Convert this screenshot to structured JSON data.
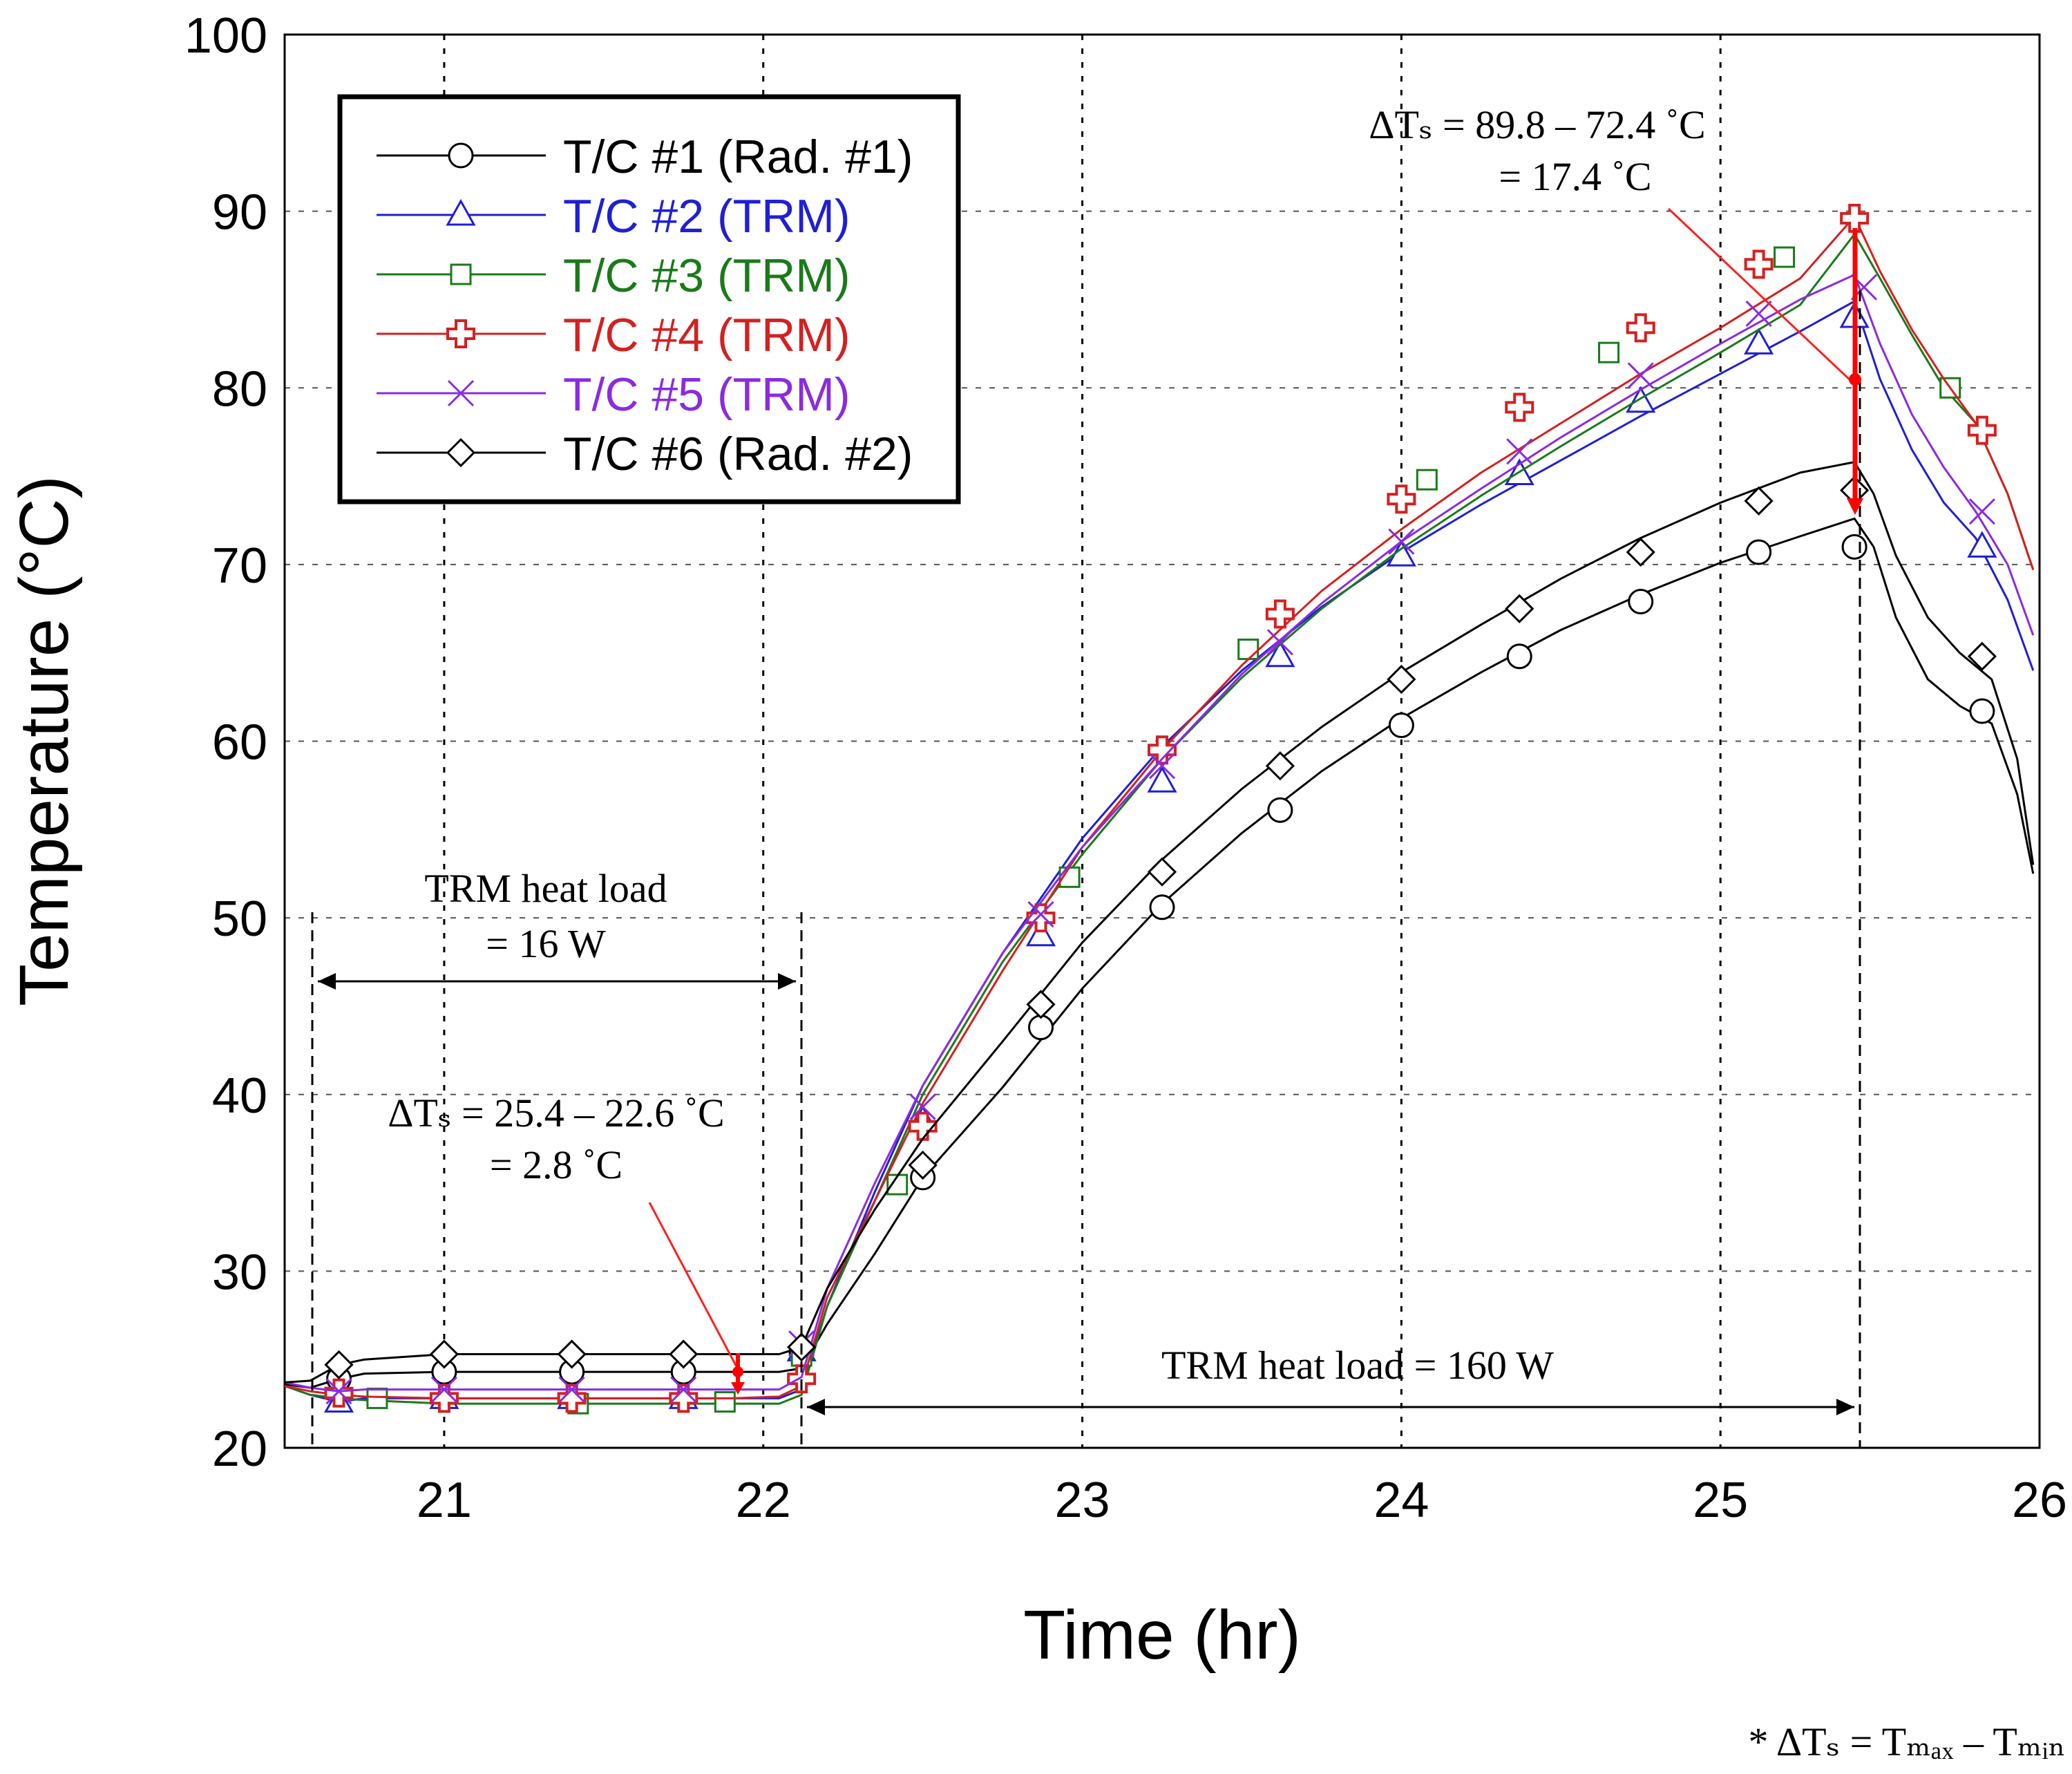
{
  "chart_data": {
    "type": "line",
    "title": "",
    "xlabel": "Time (hr)",
    "ylabel": "Temperature (°C)",
    "xlim": [
      20.5,
      26
    ],
    "ylim": [
      20,
      100
    ],
    "xticks": [
      21,
      22,
      23,
      24,
      25,
      26
    ],
    "yticks": [
      20,
      30,
      40,
      50,
      60,
      70,
      80,
      90,
      100
    ],
    "grid": true,
    "legend_position": "top-left",
    "series": [
      {
        "name": "T/C #1 (Rad. #1)",
        "color": "#000000",
        "marker": "circle",
        "x": [
          20.5,
          20.58,
          20.67,
          20.75,
          21.0,
          21.5,
          21.9,
          22.05,
          22.12,
          22.2,
          22.35,
          22.5,
          22.75,
          23.0,
          23.25,
          23.5,
          23.75,
          24.0,
          24.25,
          24.5,
          24.75,
          25.0,
          25.25,
          25.42,
          25.48,
          25.55,
          25.65,
          25.75,
          25.85,
          25.93,
          25.98
        ],
        "y": [
          23.6,
          23.4,
          23.9,
          24.2,
          24.3,
          24.3,
          24.3,
          24.3,
          24.5,
          27.0,
          31.0,
          35.3,
          40.4,
          46.0,
          50.8,
          54.8,
          58.3,
          61.3,
          63.9,
          66.3,
          68.3,
          70.1,
          71.6,
          72.6,
          71.0,
          67.0,
          63.5,
          62.0,
          61.0,
          57.0,
          52.5
        ],
        "marker_x": [
          20.67,
          21.0,
          21.4,
          21.75,
          22.12,
          22.5,
          22.87,
          23.25,
          23.62,
          24.0,
          24.37,
          24.75,
          25.12,
          25.42,
          25.82
        ],
        "marker_y": [
          23.9,
          24.3,
          24.3,
          24.3,
          25.4,
          35.3,
          43.8,
          50.6,
          56.1,
          60.9,
          64.8,
          67.9,
          70.7,
          71.0,
          61.7
        ]
      },
      {
        "name": "T/C #2 (TRM)",
        "color": "#1f1fd6",
        "marker": "triangle",
        "x": [
          20.5,
          20.58,
          20.67,
          20.75,
          21.0,
          21.5,
          21.9,
          22.05,
          22.12,
          22.2,
          22.35,
          22.5,
          22.75,
          23.0,
          23.25,
          23.5,
          23.75,
          24.0,
          24.25,
          24.5,
          24.75,
          25.0,
          25.25,
          25.42,
          25.5,
          25.6,
          25.7,
          25.8,
          25.9,
          25.98
        ],
        "y": [
          23.5,
          23.0,
          22.6,
          22.8,
          22.8,
          22.8,
          22.8,
          22.8,
          23.3,
          28.0,
          34.5,
          40.5,
          48.0,
          54.5,
          59.7,
          64.0,
          67.6,
          70.7,
          73.4,
          75.9,
          78.4,
          80.8,
          83.2,
          84.9,
          80.5,
          76.5,
          73.5,
          71.5,
          68.0,
          64.0
        ],
        "marker_x": [
          20.67,
          21.0,
          21.4,
          21.75,
          22.12,
          22.5,
          22.87,
          23.25,
          23.62,
          24.0,
          24.37,
          24.75,
          25.12,
          25.42,
          25.82
        ],
        "marker_y": [
          22.6,
          22.8,
          22.8,
          22.8,
          25.5,
          38.5,
          49.0,
          57.7,
          64.8,
          70.5,
          75.1,
          79.2,
          82.5,
          84.0,
          71.0
        ]
      },
      {
        "name": "T/C #3 (TRM)",
        "color": "#1a7a1a",
        "marker": "square",
        "x": [
          20.5,
          20.58,
          20.67,
          20.75,
          21.0,
          21.5,
          21.9,
          22.05,
          22.12,
          22.2,
          22.35,
          22.5,
          22.75,
          23.0,
          23.25,
          23.5,
          23.75,
          24.0,
          24.25,
          24.5,
          24.75,
          25.0,
          25.25,
          25.42,
          25.5,
          25.6,
          25.7,
          25.8,
          25.9,
          25.98
        ],
        "y": [
          23.5,
          23.0,
          22.8,
          22.7,
          22.5,
          22.5,
          22.5,
          22.5,
          23.0,
          28.0,
          34.0,
          40.0,
          47.5,
          53.6,
          59.0,
          63.6,
          67.5,
          70.9,
          73.9,
          76.7,
          79.4,
          82.0,
          84.7,
          88.7,
          86.2,
          83.0,
          80.0,
          78.0,
          74.0,
          69.7
        ],
        "marker_x": [
          20.79,
          21.42,
          21.88,
          22.12,
          22.42,
          22.96,
          23.52,
          24.08,
          24.65,
          25.2,
          25.72
        ],
        "marker_y": [
          22.8,
          22.5,
          22.6,
          25.2,
          34.9,
          52.3,
          65.2,
          74.8,
          82.0,
          87.4,
          80.0
        ]
      },
      {
        "name": "T/C #4 (TRM)",
        "color": "#d42020",
        "marker": "cross",
        "x": [
          20.5,
          20.58,
          20.67,
          20.75,
          21.0,
          21.5,
          21.9,
          22.05,
          22.12,
          22.2,
          22.35,
          22.5,
          22.75,
          23.0,
          23.25,
          23.5,
          23.75,
          24.0,
          24.25,
          24.5,
          24.75,
          25.0,
          25.25,
          25.42,
          25.5,
          25.6,
          25.7,
          25.8,
          25.9,
          25.98
        ],
        "y": [
          23.5,
          23.2,
          23.0,
          22.9,
          22.8,
          22.8,
          22.8,
          22.9,
          23.5,
          28.5,
          34.0,
          39.5,
          47.0,
          54.0,
          59.5,
          64.3,
          68.5,
          72.0,
          75.2,
          78.0,
          80.8,
          83.4,
          86.2,
          89.7,
          86.6,
          83.3,
          80.5,
          78.0,
          74.0,
          69.7
        ],
        "marker_x": [
          20.67,
          21.0,
          21.4,
          21.75,
          22.12,
          22.5,
          22.87,
          23.25,
          23.62,
          24.0,
          24.37,
          24.75,
          25.12,
          25.42,
          25.82
        ],
        "marker_y": [
          23.1,
          22.8,
          22.8,
          22.8,
          23.9,
          38.2,
          50.0,
          59.5,
          67.2,
          73.7,
          78.9,
          83.4,
          87.0,
          89.6,
          77.6
        ]
      },
      {
        "name": "T/C #5 (TRM)",
        "color": "#8a2be2",
        "marker": "x",
        "x": [
          20.5,
          20.58,
          20.67,
          20.75,
          21.0,
          21.5,
          21.9,
          22.05,
          22.12,
          22.2,
          22.35,
          22.5,
          22.75,
          23.0,
          23.25,
          23.5,
          23.75,
          24.0,
          24.25,
          24.5,
          24.75,
          25.0,
          25.25,
          25.42,
          25.5,
          25.6,
          25.7,
          25.8,
          25.9,
          25.98
        ],
        "y": [
          23.7,
          23.4,
          23.2,
          23.3,
          23.3,
          23.3,
          23.3,
          23.3,
          24.0,
          29.0,
          35.0,
          40.5,
          48.0,
          54.0,
          59.0,
          63.8,
          67.8,
          71.3,
          74.3,
          77.2,
          79.9,
          82.5,
          85.0,
          86.4,
          82.5,
          78.5,
          75.5,
          73.0,
          70.0,
          66.0
        ],
        "marker_x": [
          20.67,
          21.0,
          21.4,
          21.75,
          22.12,
          22.5,
          22.87,
          23.25,
          23.62,
          24.0,
          24.37,
          24.75,
          25.12,
          25.45,
          25.82
        ],
        "marker_y": [
          23.2,
          23.3,
          23.3,
          23.3,
          25.9,
          39.3,
          50.2,
          58.6,
          65.6,
          71.3,
          76.4,
          80.7,
          84.2,
          85.7,
          73.0
        ]
      },
      {
        "name": "T/C #6 (Rad. #2)",
        "color": "#000000",
        "marker": "diamond",
        "x": [
          20.5,
          20.58,
          20.67,
          20.75,
          21.0,
          21.5,
          21.9,
          22.05,
          22.12,
          22.2,
          22.35,
          22.5,
          22.75,
          23.0,
          23.25,
          23.5,
          23.75,
          24.0,
          24.25,
          24.5,
          24.75,
          25.0,
          25.25,
          25.42,
          25.48,
          25.55,
          25.65,
          25.75,
          25.85,
          25.93,
          25.98
        ],
        "y": [
          23.7,
          23.8,
          24.7,
          25.0,
          25.3,
          25.3,
          25.3,
          25.3,
          25.7,
          29.0,
          33.5,
          37.5,
          43.0,
          48.6,
          53.3,
          57.3,
          60.8,
          63.9,
          66.6,
          69.2,
          71.5,
          73.5,
          75.2,
          75.8,
          74.0,
          70.5,
          67.0,
          65.0,
          63.5,
          59.0,
          53.0
        ],
        "marker_x": [
          20.67,
          21.0,
          21.4,
          21.75,
          22.12,
          22.5,
          22.87,
          23.25,
          23.62,
          24.0,
          24.37,
          24.75,
          25.12,
          25.42,
          25.82
        ],
        "marker_y": [
          24.7,
          25.3,
          25.3,
          25.3,
          25.7,
          36.0,
          45.1,
          52.6,
          58.6,
          63.5,
          67.5,
          70.7,
          73.6,
          74.2,
          64.8
        ]
      }
    ],
    "annotations": {
      "top_delta_line1": "ΔTₛ = 89.8 – 72.4 ˚C",
      "top_delta_line2": "= 17.4 ˚C",
      "bottom_delta_line1": "ΔTₛ = 25.4 – 22.6 ˚C",
      "bottom_delta_line2": "= 2.8 ˚C",
      "low_load_line1": "TRM heat load",
      "low_load_line2": "= 16 W",
      "high_load": "TRM heat load = 160 W",
      "footnote": "* ΔTₛ = Tₘₐₓ – Tₘᵢₙ"
    }
  }
}
